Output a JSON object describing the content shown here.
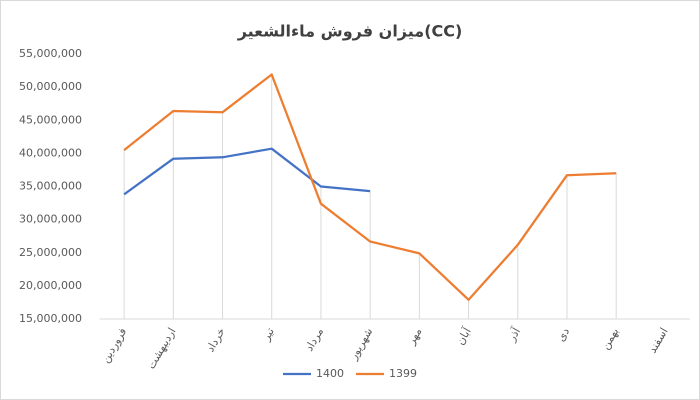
{
  "chart_data": {
    "type": "line",
    "title": "میزان فروش ماءالشعیر(CC)",
    "categories": [
      "فروردین",
      "اردیبهشت",
      "خرداد",
      "تیر",
      "مرداد",
      "شهریور",
      "مهر",
      "آبان",
      "آذر",
      "دی",
      "بهمن",
      "اسفند"
    ],
    "series": [
      {
        "name": "1400",
        "color": "#4472c4",
        "values": [
          33800000,
          39200000,
          39400000,
          40700000,
          35000000,
          34300000,
          null,
          null,
          null,
          null,
          null,
          null
        ]
      },
      {
        "name": "1399",
        "color": "#ed7d31",
        "values": [
          40500000,
          46400000,
          46200000,
          51900000,
          32400000,
          26700000,
          24900000,
          17900000,
          26200000,
          36700000,
          37000000,
          null
        ]
      }
    ],
    "ylim": [
      15000000,
      55000000
    ],
    "yticks": [
      {
        "value": 15000000,
        "label": "15,000,000"
      },
      {
        "value": 20000000,
        "label": "20,000,000"
      },
      {
        "value": 25000000,
        "label": "25,000,000"
      },
      {
        "value": 30000000,
        "label": "30,000,000"
      },
      {
        "value": 35000000,
        "label": "35,000,000"
      },
      {
        "value": 40000000,
        "label": "40,000,000"
      },
      {
        "value": 45000000,
        "label": "45,000,000"
      },
      {
        "value": 50000000,
        "label": "50,000,000"
      },
      {
        "value": 55000000,
        "label": "55,000,000"
      }
    ],
    "legend": "bottom"
  }
}
